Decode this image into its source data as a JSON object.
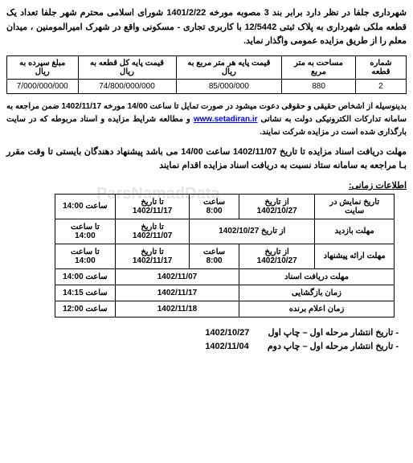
{
  "intro": "شهرداری جلفا در نظر دارد برابر بند 3 مصوبه مورخه 1401/2/22 شورای اسلامی محترم شهر جلفا تعداد یک قطعه ملکی شهرداری به پلاک ثبتی 12/5442 با کاربری تجاری - مسکونی واقع در شهرک امیرالمومنین ، میدان معلم را از طریق مزایده عمومی واگذار نماید.",
  "main_table": {
    "headers": [
      "شماره قطعه",
      "مساحت به متر مربع",
      "قیمت پایه هر متر مربع به ریال",
      "قیمت پایه کل قطعه به ریال",
      "مبلغ سپرده به ریال"
    ],
    "row": [
      "2",
      "880",
      "85/000/000",
      "74/800/000/000",
      "7/000/000/000"
    ]
  },
  "middle_p1_before": "بدینوسیله از اشخاص حقیقی و حقوقی دعوت میشود در صورت تمایل تا ساعت 14/00 مورخه 1402/11/17 ضمن مراجعه به سامانه تدارکات الکترونیکی دولت به نشانی ",
  "middle_link": "www.setadiran.ir",
  "middle_p1_after": " و مطالعه شرایط مزایده و اسناد مربوطه که در سایت بارگذاری شده است در مزایده شرکت نمایند.",
  "deadline": "مهلت دریافت اسناد مزایده تا تاریخ 1402/11/07 ساعت 14/00 می باشد پیشنهاد دهندگان بایستی تا وقت مقرر بـا مراجعه به سامانه ستاد نسبت به دریافت اسناد مزایده اقدام نمایند",
  "timing_title": "اطلاعات زمانی:",
  "timing_rows": [
    {
      "label": "تاریخ نمایش در سایت",
      "from": "از تاریخ 1402/10/27",
      "from_time": "ساعت 8:00",
      "to": "تا تاریخ 1402/11/17",
      "to_time": "ساعت 14:00"
    },
    {
      "label": "مهلت بازدید",
      "from": "از تاریخ 1402/10/27",
      "from_time": "",
      "to": "تا تاریخ 1402/11/07",
      "to_time": "تا ساعت 14:00"
    },
    {
      "label": "مهلت ارائه پیشنهاد",
      "from": "از تاریخ 1402/10/27",
      "from_time": "ساعت 8:00",
      "to": "تا تاریخ 1402/11/17",
      "to_time": "تا ساعت 14:00"
    }
  ],
  "single_rows": [
    {
      "label": "مهلت دریافت اسناد",
      "date": "1402/11/07",
      "time": "ساعت 14:00"
    },
    {
      "label": "زمان بازگشایی",
      "date": "1402/11/17",
      "time": "ساعت 14:15"
    },
    {
      "label": "زمان اعلام برنده",
      "date": "1402/11/18",
      "time": "ساعت 12:00"
    }
  ],
  "footer1_label": "- تاریخ انتشار مرحله اول – چاپ اول",
  "footer1_date": "1402/10/27",
  "footer2_label": "- تاریخ انتشار مرحله اول – چاپ دوم",
  "footer2_date": "1402/11/04",
  "watermark": "ParsNamadData"
}
